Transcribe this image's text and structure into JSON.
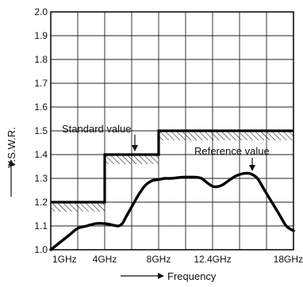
{
  "chart_data": {
    "type": "line",
    "ylabel": "V.S.W.R.",
    "xlabel": "Frequency",
    "y_ticks": [
      "1.0",
      "1.1",
      "1.2",
      "1.3",
      "1.4",
      "1.5",
      "1.6",
      "1.7",
      "1.8",
      "1.9",
      "2.0"
    ],
    "ylim": [
      1.0,
      2.0
    ],
    "x_ticks": [
      {
        "label": "1GHz",
        "value": 1
      },
      {
        "label": "4GHz",
        "value": 4
      },
      {
        "label": "8GHz",
        "value": 8
      },
      {
        "label": "12.4GHz",
        "value": 12.4
      },
      {
        "label": "18GHz",
        "value": 18
      }
    ],
    "xlim": [
      1,
      18
    ],
    "grid": true,
    "series": [
      {
        "name": "Standard value",
        "style": "step",
        "x": [
          1,
          4,
          4,
          8,
          8,
          18
        ],
        "y": [
          1.2,
          1.2,
          1.4,
          1.4,
          1.5,
          1.5
        ]
      },
      {
        "name": "Reference value",
        "style": "curve",
        "x": [
          1,
          1.5,
          2,
          2.5,
          3,
          3.5,
          4,
          4.5,
          5,
          5.3,
          5.6,
          6,
          6.5,
          7,
          7.5,
          8,
          8.5,
          9,
          10,
          11,
          11.5,
          12,
          12.5,
          13,
          13.5,
          14,
          14.5,
          15,
          15.5,
          16,
          16.5,
          17,
          17.5,
          18
        ],
        "y": [
          1.0,
          1.03,
          1.06,
          1.09,
          1.1,
          1.11,
          1.11,
          1.105,
          1.1,
          1.11,
          1.14,
          1.18,
          1.23,
          1.27,
          1.29,
          1.295,
          1.3,
          1.3,
          1.305,
          1.305,
          1.3,
          1.28,
          1.265,
          1.27,
          1.29,
          1.31,
          1.32,
          1.32,
          1.3,
          1.25,
          1.2,
          1.15,
          1.1,
          1.08
        ]
      }
    ],
    "annotations": {
      "standard_label": "Standard value",
      "reference_label": "Reference value"
    }
  }
}
